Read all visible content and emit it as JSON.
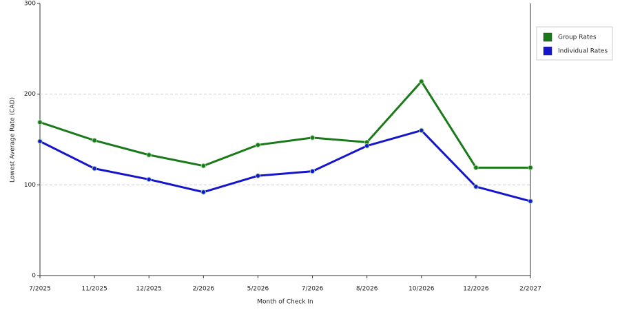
{
  "chart_data": {
    "type": "line",
    "x_label": "Month of Check In",
    "y_label": "Lowest Average Rate (CAD)",
    "categories": [
      "7/2025",
      "11/2025",
      "12/2025",
      "2/2026",
      "5/2026",
      "7/2026",
      "8/2026",
      "10/2026",
      "12/2026",
      "2/2027"
    ],
    "series": [
      {
        "name": "Group Rates",
        "color": "#1a7a1a",
        "values": [
          169,
          149,
          133,
          121,
          144,
          152,
          147,
          214,
          119,
          119
        ]
      },
      {
        "name": "Individual Rates",
        "color": "#1515cc",
        "values": [
          148,
          118,
          106,
          92,
          110,
          115,
          143,
          160,
          98,
          82
        ]
      }
    ],
    "ylim": [
      0,
      300
    ],
    "yticks": [
      0,
      100,
      200,
      300
    ],
    "grid": true,
    "legend": "right"
  }
}
